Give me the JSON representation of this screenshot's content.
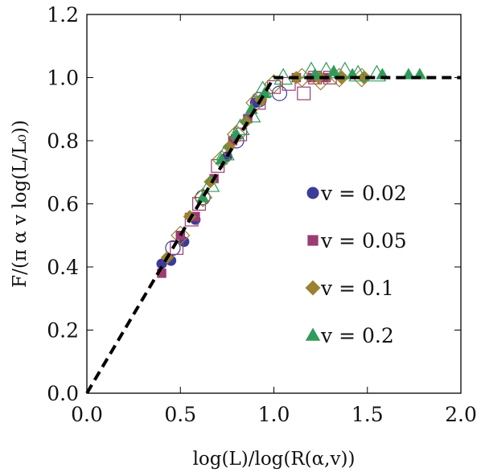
{
  "chart_data": {
    "type": "scatter",
    "title": "",
    "xlabel": "log(L)/log(R(α,v))",
    "ylabel": "F/(π α v log(L/L₀))",
    "xlim": [
      0.0,
      2.0
    ],
    "ylim": [
      0.0,
      1.2
    ],
    "x_ticks": [
      0.0,
      0.5,
      1.0,
      1.5,
      2.0
    ],
    "y_ticks": [
      0.0,
      0.2,
      0.4,
      0.6,
      0.8,
      1.0,
      1.2
    ],
    "x_tick_labels": [
      "0.0",
      "0.5",
      "1.0",
      "1.5",
      "2.0"
    ],
    "y_tick_labels": [
      "0.0",
      "0.2",
      "0.4",
      "0.6",
      "0.8",
      "1.0",
      "1.2"
    ],
    "grid": false,
    "legend_position": "center-right",
    "reference_curve": {
      "style": "dashed",
      "color": "#000000",
      "points": [
        [
          0.0,
          0.0
        ],
        [
          1.0,
          1.0
        ],
        [
          2.0,
          1.0
        ]
      ]
    },
    "series": [
      {
        "name": "v = 0.02",
        "marker": "circle",
        "color": "#3c3c96",
        "filled": [
          [
            0.4,
            0.41
          ],
          [
            0.45,
            0.42
          ],
          [
            0.52,
            0.48
          ],
          [
            0.58,
            0.55
          ],
          [
            0.75,
            0.75
          ],
          [
            0.9,
            0.92
          ]
        ],
        "open": [
          [
            0.46,
            0.46
          ],
          [
            0.62,
            0.62
          ],
          [
            0.8,
            0.8
          ],
          [
            0.92,
            0.93
          ],
          [
            1.03,
            0.95
          ]
        ]
      },
      {
        "name": "v = 0.05",
        "marker": "square",
        "color": "#9b3c72",
        "filled": [
          [
            0.4,
            0.38
          ],
          [
            0.5,
            0.5
          ],
          [
            0.58,
            0.56
          ],
          [
            0.68,
            0.68
          ],
          [
            0.78,
            0.8
          ],
          [
            0.86,
            0.87
          ],
          [
            1.12,
            1.0
          ],
          [
            1.2,
            1.0
          ],
          [
            1.28,
            1.0
          ]
        ],
        "open": [
          [
            0.48,
            0.46
          ],
          [
            0.56,
            0.55
          ],
          [
            0.6,
            0.6
          ],
          [
            0.7,
            0.72
          ],
          [
            0.82,
            0.82
          ],
          [
            0.92,
            0.92
          ],
          [
            1.0,
            0.97
          ],
          [
            1.08,
            0.98
          ],
          [
            1.16,
            0.95
          ],
          [
            1.22,
            1.0
          ],
          [
            1.3,
            1.0
          ]
        ]
      },
      {
        "name": "v = 0.1",
        "marker": "diamond",
        "color": "#9b8232",
        "filled": [
          [
            0.43,
            0.43
          ],
          [
            0.55,
            0.56
          ],
          [
            0.66,
            0.67
          ],
          [
            0.76,
            0.78
          ],
          [
            0.85,
            0.86
          ],
          [
            0.93,
            0.93
          ],
          [
            1.12,
            1.0
          ],
          [
            1.24,
            1.0
          ],
          [
            1.36,
            1.0
          ],
          [
            1.48,
            1.0
          ]
        ],
        "open": [
          [
            0.5,
            0.5
          ],
          [
            0.62,
            0.62
          ],
          [
            0.72,
            0.74
          ],
          [
            0.8,
            0.82
          ],
          [
            0.9,
            0.92
          ],
          [
            1.0,
            0.98
          ],
          [
            1.15,
            1.0
          ],
          [
            1.25,
            0.99
          ],
          [
            1.35,
            1.0
          ],
          [
            1.47,
            1.0
          ]
        ]
      },
      {
        "name": "v = 0.2",
        "marker": "triangle",
        "color": "#329b5a",
        "filled": [
          [
            0.62,
            0.62
          ],
          [
            0.72,
            0.74
          ],
          [
            0.8,
            0.82
          ],
          [
            0.88,
            0.9
          ],
          [
            0.95,
            0.95
          ],
          [
            1.22,
            1.01
          ],
          [
            1.32,
            1.02
          ],
          [
            1.42,
            1.01
          ],
          [
            1.58,
            1.01
          ],
          [
            1.72,
            1.01
          ],
          [
            1.78,
            1.01
          ]
        ],
        "open": [
          [
            0.66,
            0.66
          ],
          [
            0.74,
            0.76
          ],
          [
            0.82,
            0.84
          ],
          [
            0.88,
            0.88
          ],
          [
            0.94,
            0.96
          ],
          [
            1.05,
            1.0
          ],
          [
            1.2,
            1.02
          ],
          [
            1.28,
            1.02
          ],
          [
            1.38,
            1.02
          ],
          [
            1.45,
            1.01
          ],
          [
            1.55,
            1.01
          ]
        ]
      }
    ]
  }
}
